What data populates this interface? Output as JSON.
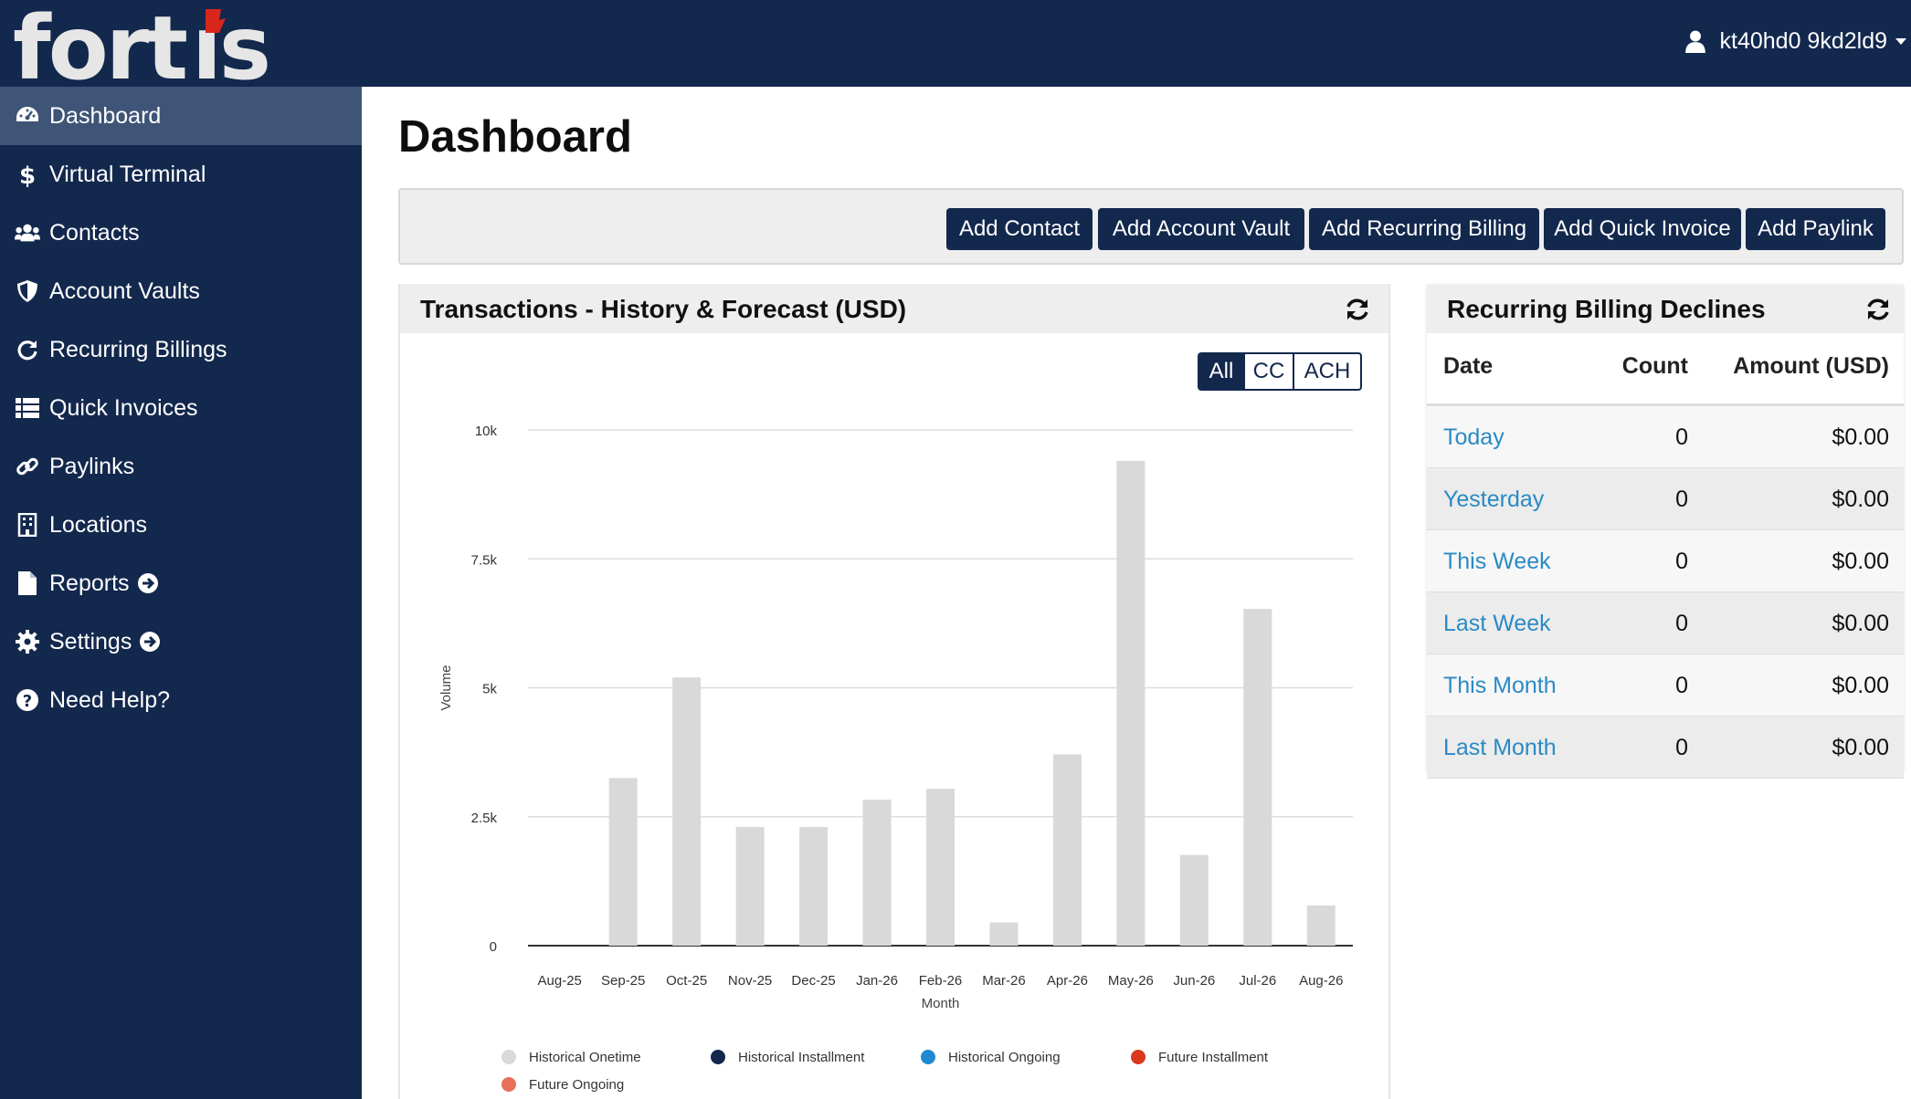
{
  "brand": {
    "logo_text": "Fortis",
    "accent": "#d9261c",
    "navy": "#13284d"
  },
  "user": {
    "name": "kt40hd0 9kd2ld9",
    "icon": "user-icon"
  },
  "sidebar": {
    "items": [
      {
        "label": "Dashboard",
        "icon": "dashboard-icon",
        "active": true
      },
      {
        "label": "Virtual Terminal",
        "icon": "dollar-icon"
      },
      {
        "label": "Contacts",
        "icon": "users-icon"
      },
      {
        "label": "Account Vaults",
        "icon": "shield-icon"
      },
      {
        "label": "Recurring Billings",
        "icon": "redo-icon"
      },
      {
        "label": "Quick Invoices",
        "icon": "list-icon"
      },
      {
        "label": "Paylinks",
        "icon": "link-icon"
      },
      {
        "label": "Locations",
        "icon": "building-icon"
      },
      {
        "label": "Reports",
        "icon": "file-icon",
        "expandable": true
      },
      {
        "label": "Settings",
        "icon": "gear-icon",
        "expandable": true
      },
      {
        "label": "Need Help?",
        "icon": "question-icon"
      }
    ]
  },
  "page": {
    "title": "Dashboard"
  },
  "actions": [
    "Add Contact",
    "Add Account Vault",
    "Add Recurring Billing",
    "Add Quick Invoice",
    "Add Paylink"
  ],
  "transactions_card": {
    "title": "Transactions - History & Forecast (USD)",
    "filters": [
      "All",
      "CC",
      "ACH"
    ],
    "active_filter": "All"
  },
  "chart_data": {
    "type": "bar",
    "categories": [
      "Aug-25",
      "Sep-25",
      "Oct-25",
      "Nov-25",
      "Dec-25",
      "Jan-26",
      "Feb-26",
      "Mar-26",
      "Apr-26",
      "May-26",
      "Jun-26",
      "Jul-26",
      "Aug-26"
    ],
    "series": [
      {
        "name": "Historical Onetime",
        "color": "#d9d9d9",
        "values": [
          0,
          3250,
          5200,
          2300,
          2300,
          2830,
          3040,
          450,
          3710,
          9400,
          1760,
          6530,
          780
        ]
      },
      {
        "name": "Historical Installment",
        "color": "#13284d",
        "values": [
          0,
          0,
          0,
          0,
          0,
          0,
          0,
          0,
          0,
          0,
          0,
          0,
          0
        ]
      },
      {
        "name": "Historical Ongoing",
        "color": "#1e88d0",
        "values": [
          0,
          0,
          0,
          0,
          0,
          0,
          0,
          0,
          0,
          0,
          0,
          0,
          0
        ]
      },
      {
        "name": "Future Installment",
        "color": "#d9381e",
        "values": [
          0,
          0,
          0,
          0,
          0,
          0,
          0,
          0,
          0,
          0,
          0,
          0,
          0
        ]
      },
      {
        "name": "Future Ongoing",
        "color": "#e8705a",
        "values": [
          0,
          0,
          0,
          0,
          0,
          0,
          0,
          0,
          0,
          0,
          0,
          0,
          0
        ]
      }
    ],
    "xlabel": "Month",
    "ylabel": "Volume",
    "ylim": [
      0,
      10000
    ],
    "yticks": [
      0,
      2500,
      5000,
      7500,
      10000
    ],
    "ytick_labels": [
      "0",
      "2.5k",
      "5k",
      "7.5k",
      "10k"
    ],
    "grid": true,
    "legend_position": "bottom"
  },
  "declines_card": {
    "title": "Recurring Billing Declines",
    "columns": [
      "Date",
      "Count",
      "Amount (USD)"
    ],
    "rows": [
      {
        "date": "Today",
        "count": "0",
        "amount": "$0.00"
      },
      {
        "date": "Yesterday",
        "count": "0",
        "amount": "$0.00"
      },
      {
        "date": "This Week",
        "count": "0",
        "amount": "$0.00"
      },
      {
        "date": "Last Week",
        "count": "0",
        "amount": "$0.00"
      },
      {
        "date": "This Month",
        "count": "0",
        "amount": "$0.00"
      },
      {
        "date": "Last Month",
        "count": "0",
        "amount": "$0.00"
      }
    ]
  }
}
